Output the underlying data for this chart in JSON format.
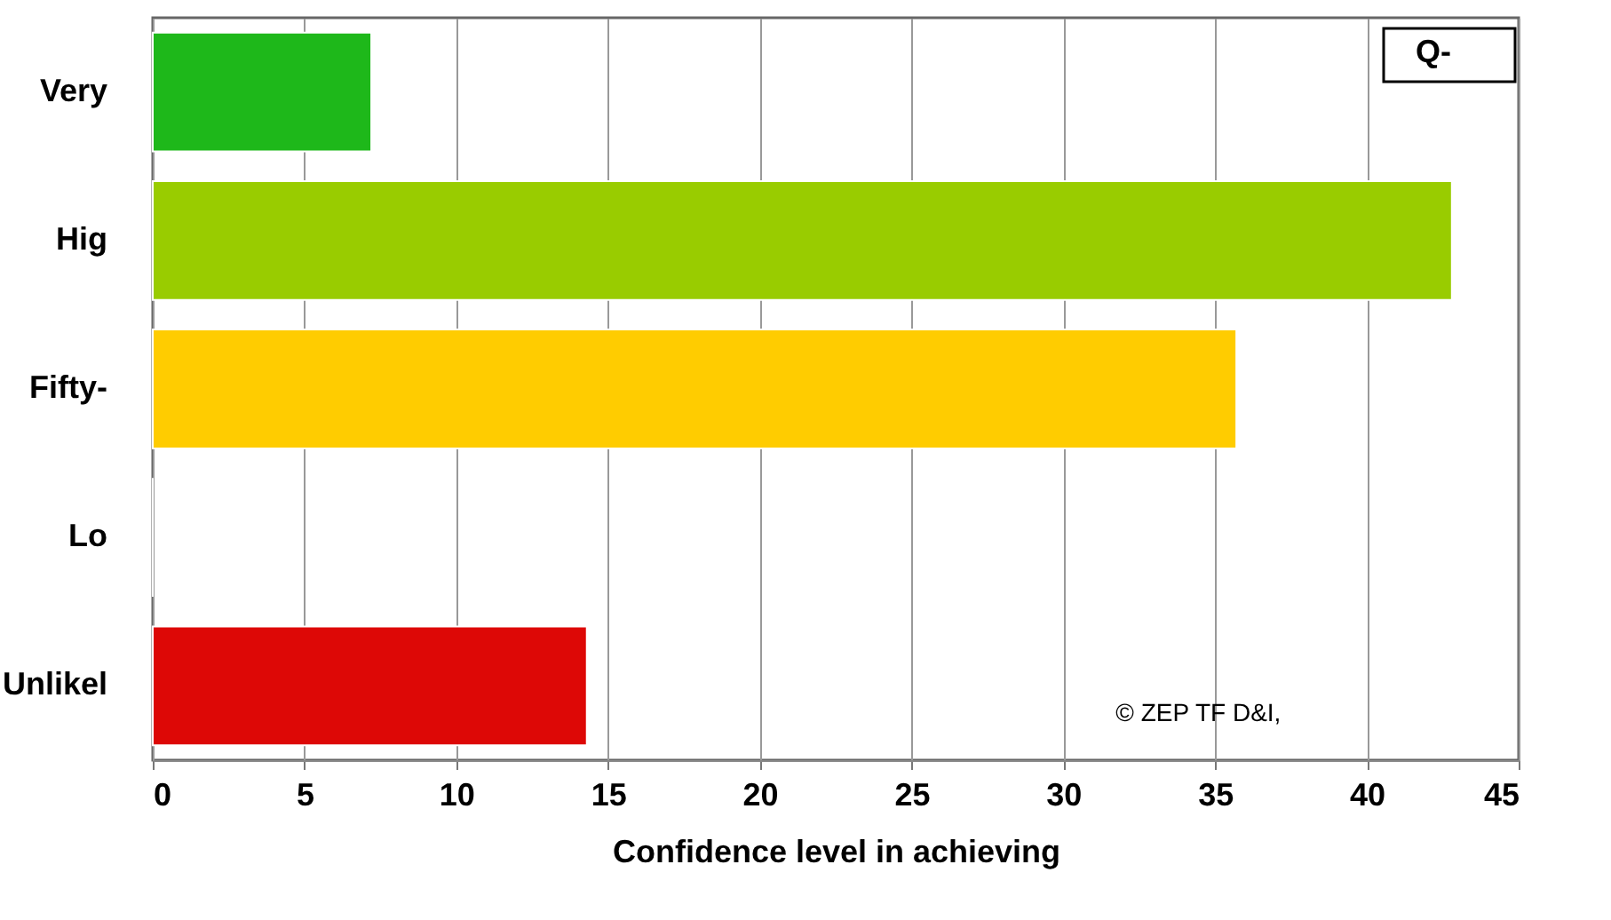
{
  "chart_data": {
    "type": "bar",
    "orientation": "horizontal",
    "categories": [
      "Very",
      "Hig",
      "Fifty-",
      "Lo",
      "Unlikel"
    ],
    "values": [
      7.2,
      42.8,
      35.7,
      0,
      14.3
    ],
    "colors": [
      "#1eb81a",
      "#99cc00",
      "#ffcc00",
      "#ffffff",
      "#dd0806"
    ],
    "xlabel": "Confidence level in achieving",
    "xlim": [
      0,
      45
    ],
    "xticks": [
      0,
      5,
      10,
      15,
      20,
      25,
      30,
      35,
      40,
      45
    ],
    "grid": "x",
    "annotations": [
      "Q-",
      "© ZEP TF D&I,"
    ]
  }
}
